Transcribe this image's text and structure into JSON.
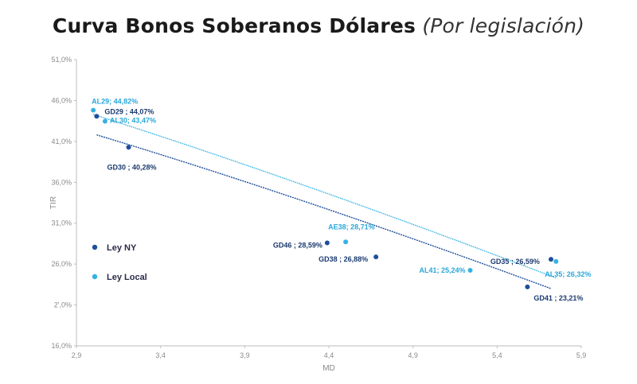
{
  "chart_data": {
    "type": "scatter",
    "title": "Curva Bonos Soberanos Dólares",
    "subtitle": "(Por legislación)",
    "xlabel": "MD",
    "ylabel": "TIR",
    "xlim": [
      2.9,
      5.9
    ],
    "ylim": [
      16.0,
      51.0
    ],
    "x_ticks": [
      2.9,
      3.4,
      3.9,
      4.4,
      4.9,
      5.4,
      5.9
    ],
    "x_tick_labels": [
      "2,9",
      "3,4",
      "3,9",
      "4,4",
      "4,9",
      "5,4",
      "5,9"
    ],
    "y_ticks": [
      16,
      21,
      26,
      31,
      36,
      41,
      46,
      51
    ],
    "y_tick_labels": [
      "16,0%",
      "2',0%",
      "26,0%",
      "31,0%",
      "36,0%",
      "41,0%",
      "46,0%",
      "51,0%"
    ],
    "series": [
      {
        "name": "Ley NY",
        "color": "#1f4e9c",
        "points": [
          {
            "x": 3.02,
            "y": 44.07,
            "label": "GD29 ; 44,07%"
          },
          {
            "x": 3.21,
            "y": 40.28,
            "label": "GD30 ; 40,28%"
          },
          {
            "x": 4.39,
            "y": 28.59,
            "label": "GD46 ; 28,59%"
          },
          {
            "x": 4.68,
            "y": 26.88,
            "label": "GD38 ; 26,88%"
          },
          {
            "x": 5.72,
            "y": 26.59,
            "label": "GD35 ; 26,59%"
          },
          {
            "x": 5.58,
            "y": 23.21,
            "label": "GD41 ; 23,21%"
          }
        ],
        "trend": [
          {
            "x": 3.02,
            "y": 41.8
          },
          {
            "x": 5.72,
            "y": 23.0
          }
        ]
      },
      {
        "name": "Ley Local",
        "color": "#35b2e3",
        "points": [
          {
            "x": 3.0,
            "y": 44.82,
            "label": "AL29; 44,82%"
          },
          {
            "x": 3.07,
            "y": 43.47,
            "label": "AL30; 43,47%"
          },
          {
            "x": 4.5,
            "y": 28.71,
            "label": "AE38; 28,71%"
          },
          {
            "x": 5.24,
            "y": 25.24,
            "label": "AL41; 25,24%"
          },
          {
            "x": 5.75,
            "y": 26.32,
            "label": "AL35; 26,32%"
          }
        ],
        "trend": [
          {
            "x": 3.0,
            "y": 44.3
          },
          {
            "x": 5.75,
            "y": 24.3
          }
        ]
      }
    ],
    "legend": {
      "position": "left",
      "entries": [
        "Ley NY",
        "Ley Local"
      ]
    }
  }
}
